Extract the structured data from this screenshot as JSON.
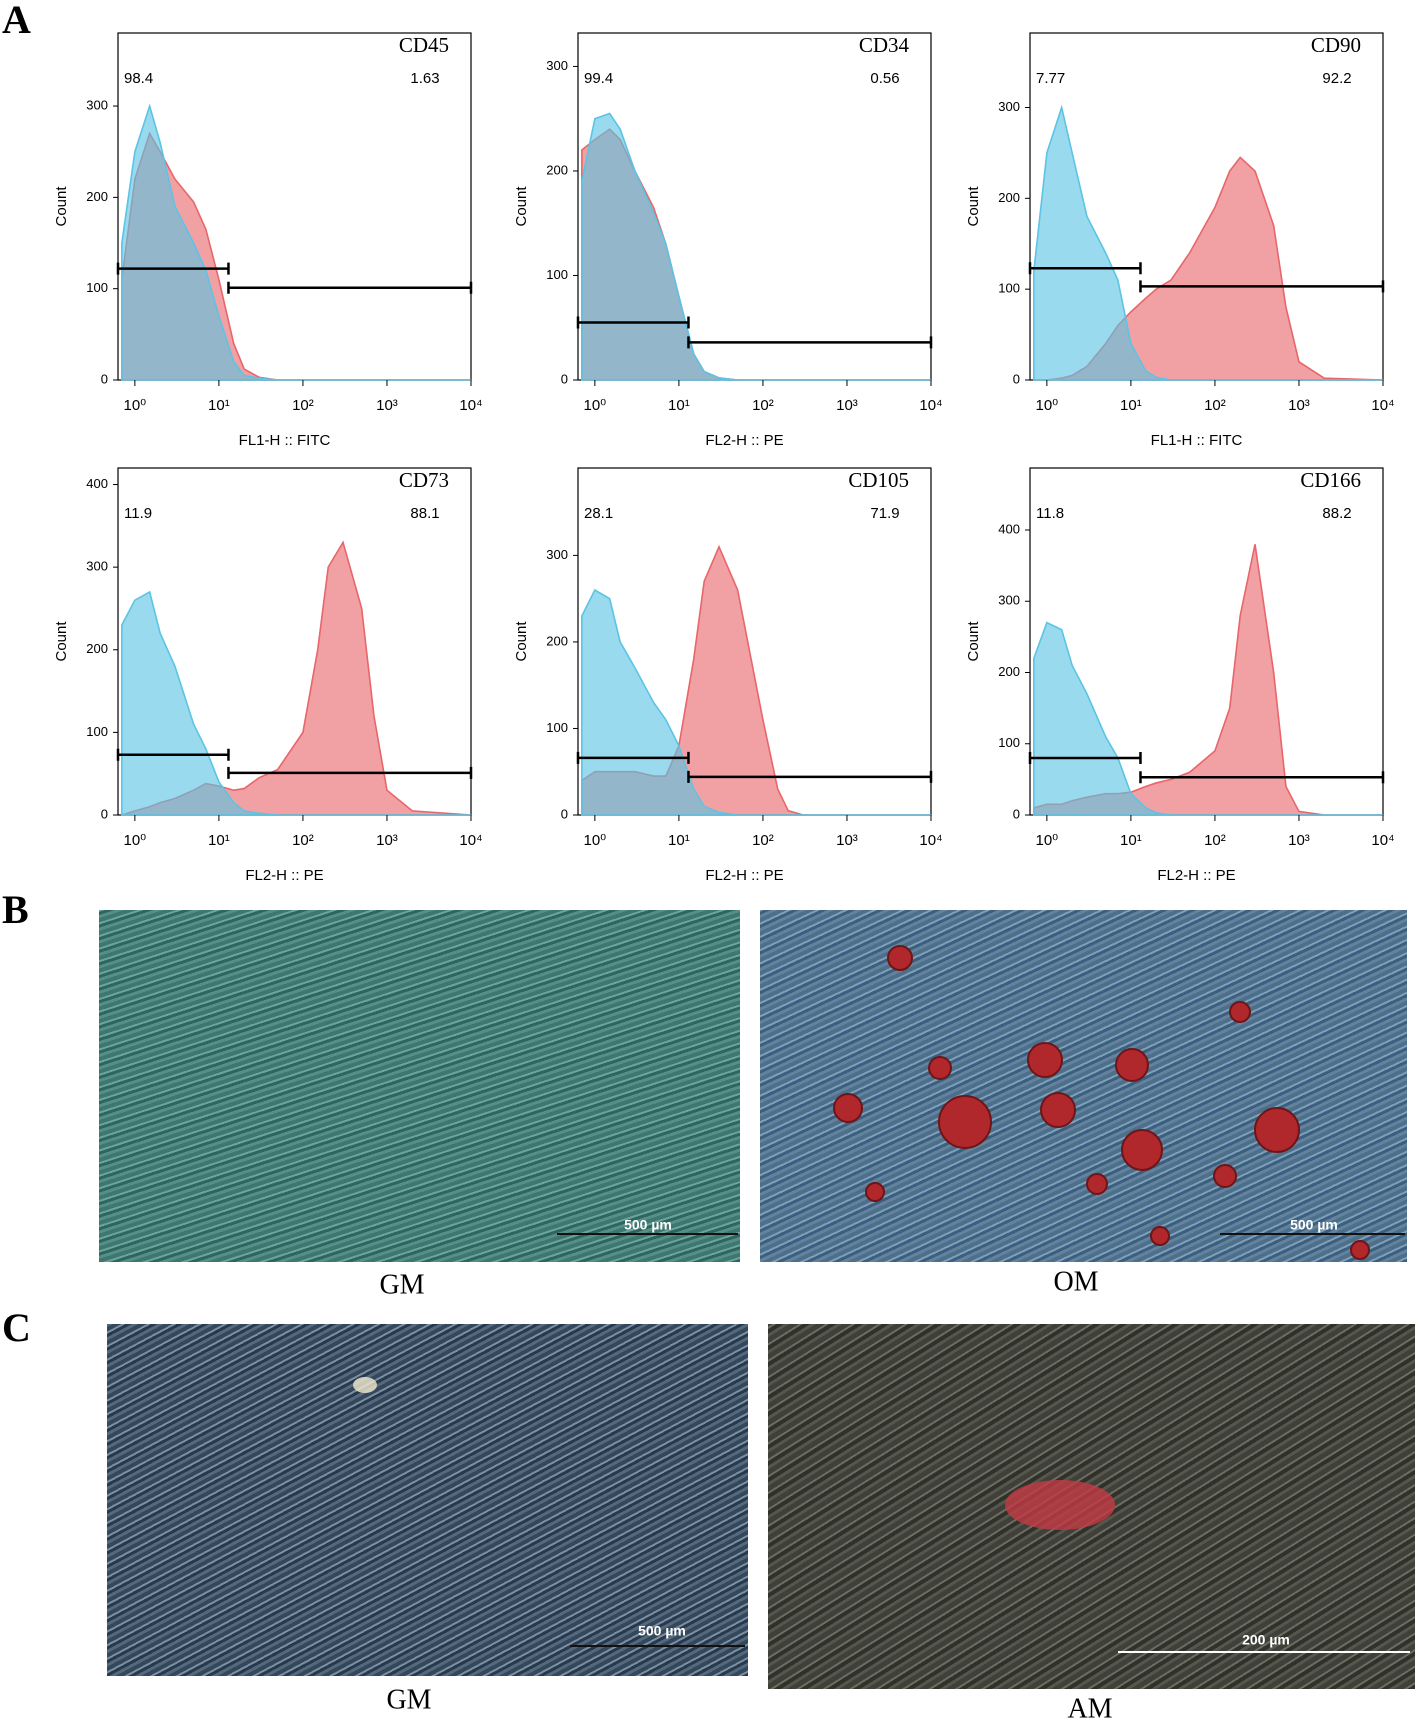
{
  "figure": {
    "panel_labels": [
      "A",
      "B",
      "C"
    ],
    "images": [
      {
        "caption": "GM",
        "scale_bar": "500 µm"
      },
      {
        "caption": "OM",
        "scale_bar": "500 µm"
      },
      {
        "caption": "GM",
        "scale_bar": "500 µm"
      },
      {
        "caption": "AM",
        "scale_bar": "200 µm"
      }
    ]
  },
  "chart_data": [
    {
      "type": "area",
      "marker": "CD45",
      "x_label": "FL1-H :: FITC",
      "y_label": "Count",
      "xscale": "log",
      "xlim": [
        0.63,
        10000
      ],
      "ylim": [
        0,
        380
      ],
      "xticks": [
        {
          "value": 1,
          "label": "10⁰"
        },
        {
          "value": 10,
          "label": "10¹"
        },
        {
          "value": 100,
          "label": "10²"
        },
        {
          "value": 1000,
          "label": "10³"
        },
        {
          "value": 10000,
          "label": "10⁴"
        }
      ],
      "yticks": [
        0,
        100,
        200,
        300
      ],
      "x": [
        0.7,
        1,
        1.5,
        2,
        3,
        5,
        7,
        10,
        15,
        20,
        30,
        50,
        100,
        150,
        200,
        300,
        500,
        700,
        1000,
        2000,
        10000
      ],
      "series": [
        {
          "color": "#e8666a",
          "values": [
            110,
            220,
            270,
            250,
            220,
            195,
            165,
            110,
            40,
            12,
            3,
            0,
            0,
            0,
            0,
            0,
            0,
            0,
            0,
            0,
            0
          ]
        },
        {
          "color": "#5bc4e4",
          "values": [
            150,
            250,
            300,
            260,
            190,
            150,
            120,
            70,
            20,
            5,
            2,
            0,
            0,
            0,
            0,
            0,
            0,
            0,
            0,
            0,
            0
          ]
        }
      ],
      "gates": [
        {
          "from": 0.63,
          "to": 13,
          "y": 122,
          "label": "98.4"
        },
        {
          "from": 13,
          "to": 10000,
          "y": 101,
          "label": "1.63"
        }
      ]
    },
    {
      "type": "area",
      "marker": "CD34",
      "x_label": "FL2-H :: PE",
      "y_label": "Count",
      "xscale": "log",
      "xlim": [
        0.63,
        10000
      ],
      "ylim": [
        0,
        332
      ],
      "xticks": [
        {
          "value": 1,
          "label": "10⁰"
        },
        {
          "value": 10,
          "label": "10¹"
        },
        {
          "value": 100,
          "label": "10²"
        },
        {
          "value": 1000,
          "label": "10³"
        },
        {
          "value": 10000,
          "label": "10⁴"
        }
      ],
      "yticks": [
        0,
        100,
        200,
        300
      ],
      "x": [
        0.7,
        1,
        1.5,
        2,
        3,
        5,
        7,
        10,
        15,
        20,
        30,
        50,
        100,
        150,
        200,
        300,
        500,
        700,
        1000,
        2000,
        10000
      ],
      "series": [
        {
          "color": "#e8666a",
          "values": [
            220,
            230,
            240,
            230,
            200,
            165,
            130,
            80,
            25,
            8,
            2,
            0,
            0,
            0,
            0,
            0,
            0,
            0,
            0,
            0,
            0
          ]
        },
        {
          "color": "#5bc4e4",
          "values": [
            190,
            250,
            255,
            240,
            200,
            160,
            130,
            80,
            25,
            8,
            2,
            0,
            0,
            0,
            0,
            0,
            0,
            0,
            0,
            0,
            0
          ]
        }
      ],
      "gates": [
        {
          "from": 0.63,
          "to": 13,
          "y": 55,
          "label": "99.4"
        },
        {
          "from": 13,
          "to": 10000,
          "y": 36,
          "label": "0.56"
        }
      ]
    },
    {
      "type": "area",
      "marker": "CD90",
      "x_label": "FL1-H :: FITC",
      "y_label": "Count",
      "xscale": "log",
      "xlim": [
        0.63,
        10000
      ],
      "ylim": [
        0,
        382
      ],
      "xticks": [
        {
          "value": 1,
          "label": "10⁰"
        },
        {
          "value": 10,
          "label": "10¹"
        },
        {
          "value": 100,
          "label": "10²"
        },
        {
          "value": 1000,
          "label": "10³"
        },
        {
          "value": 10000,
          "label": "10⁴"
        }
      ],
      "yticks": [
        0,
        100,
        200,
        300
      ],
      "x": [
        0.7,
        1,
        1.5,
        2,
        3,
        5,
        7,
        10,
        15,
        20,
        30,
        50,
        100,
        150,
        200,
        300,
        500,
        700,
        1000,
        2000,
        10000
      ],
      "series": [
        {
          "color": "#e8666a",
          "values": [
            0,
            0,
            2,
            5,
            15,
            40,
            60,
            75,
            90,
            100,
            110,
            140,
            190,
            230,
            245,
            230,
            170,
            80,
            20,
            2,
            0
          ]
        },
        {
          "color": "#5bc4e4",
          "values": [
            120,
            250,
            300,
            250,
            180,
            140,
            110,
            40,
            10,
            3,
            0,
            0,
            0,
            0,
            0,
            0,
            0,
            0,
            0,
            0,
            0
          ]
        }
      ],
      "gates": [
        {
          "from": 0.63,
          "to": 13,
          "y": 123,
          "label": "7.77"
        },
        {
          "from": 13,
          "to": 10000,
          "y": 103,
          "label": "92.2"
        }
      ]
    },
    {
      "type": "area",
      "marker": "CD73",
      "x_label": "FL2-H :: PE",
      "y_label": "Count",
      "xscale": "log",
      "xlim": [
        0.63,
        10000
      ],
      "ylim": [
        0,
        420
      ],
      "xticks": [
        {
          "value": 1,
          "label": "10⁰"
        },
        {
          "value": 10,
          "label": "10¹"
        },
        {
          "value": 100,
          "label": "10²"
        },
        {
          "value": 1000,
          "label": "10³"
        },
        {
          "value": 10000,
          "label": "10⁴"
        }
      ],
      "yticks": [
        0,
        100,
        200,
        300,
        400
      ],
      "x": [
        0.7,
        1,
        1.5,
        2,
        3,
        5,
        7,
        10,
        15,
        20,
        30,
        50,
        100,
        150,
        200,
        300,
        500,
        700,
        1000,
        2000,
        10000
      ],
      "series": [
        {
          "color": "#e8666a",
          "values": [
            0,
            5,
            10,
            15,
            20,
            30,
            38,
            35,
            30,
            32,
            45,
            55,
            100,
            200,
            300,
            330,
            250,
            120,
            30,
            5,
            0
          ]
        },
        {
          "color": "#5bc4e4",
          "values": [
            230,
            260,
            270,
            220,
            180,
            110,
            80,
            40,
            15,
            5,
            2,
            0,
            0,
            0,
            0,
            0,
            0,
            0,
            0,
            0,
            0
          ]
        }
      ],
      "gates": [
        {
          "from": 0.63,
          "to": 13,
          "y": 73,
          "label": "11.9"
        },
        {
          "from": 13,
          "to": 10000,
          "y": 51,
          "label": "88.1"
        }
      ]
    },
    {
      "type": "area",
      "marker": "CD105",
      "x_label": "FL2-H :: PE",
      "y_label": "Count",
      "xscale": "log",
      "xlim": [
        0.63,
        10000
      ],
      "ylim": [
        0,
        401
      ],
      "xticks": [
        {
          "value": 1,
          "label": "10⁰"
        },
        {
          "value": 10,
          "label": "10¹"
        },
        {
          "value": 100,
          "label": "10²"
        },
        {
          "value": 1000,
          "label": "10³"
        },
        {
          "value": 10000,
          "label": "10⁴"
        }
      ],
      "yticks": [
        0,
        100,
        200,
        300
      ],
      "x": [
        0.7,
        1,
        1.5,
        2,
        3,
        5,
        7,
        10,
        15,
        20,
        30,
        50,
        100,
        150,
        200,
        300,
        500,
        700,
        1000,
        2000,
        10000
      ],
      "series": [
        {
          "color": "#e8666a",
          "values": [
            40,
            50,
            50,
            50,
            50,
            45,
            45,
            80,
            180,
            270,
            310,
            260,
            110,
            30,
            5,
            0,
            0,
            0,
            0,
            0,
            0
          ]
        },
        {
          "color": "#5bc4e4",
          "values": [
            230,
            260,
            250,
            200,
            170,
            130,
            110,
            80,
            30,
            10,
            3,
            0,
            0,
            0,
            0,
            0,
            0,
            0,
            0,
            0,
            0
          ]
        }
      ],
      "gates": [
        {
          "from": 0.63,
          "to": 13,
          "y": 66,
          "label": "28.1"
        },
        {
          "from": 13,
          "to": 10000,
          "y": 44,
          "label": "71.9"
        }
      ]
    },
    {
      "type": "area",
      "marker": "CD166",
      "x_label": "FL2-H :: PE",
      "y_label": "Count",
      "xscale": "log",
      "xlim": [
        0.63,
        10000
      ],
      "ylim": [
        0,
        487
      ],
      "xticks": [
        {
          "value": 1,
          "label": "10⁰"
        },
        {
          "value": 10,
          "label": "10¹"
        },
        {
          "value": 100,
          "label": "10²"
        },
        {
          "value": 1000,
          "label": "10³"
        },
        {
          "value": 10000,
          "label": "10⁴"
        }
      ],
      "yticks": [
        0,
        100,
        200,
        300,
        400
      ],
      "x": [
        0.7,
        1,
        1.5,
        2,
        3,
        5,
        7,
        10,
        15,
        20,
        30,
        50,
        100,
        150,
        200,
        300,
        500,
        700,
        1000,
        2000,
        10000
      ],
      "series": [
        {
          "color": "#e8666a",
          "values": [
            10,
            15,
            15,
            20,
            25,
            30,
            30,
            32,
            40,
            45,
            50,
            60,
            90,
            150,
            280,
            380,
            200,
            40,
            5,
            0,
            0
          ]
        },
        {
          "color": "#5bc4e4",
          "values": [
            220,
            270,
            260,
            210,
            170,
            110,
            80,
            30,
            10,
            3,
            0,
            0,
            0,
            0,
            0,
            0,
            0,
            0,
            0,
            0,
            0
          ]
        }
      ],
      "gates": [
        {
          "from": 0.63,
          "to": 13,
          "y": 80,
          "label": "11.8"
        },
        {
          "from": 13,
          "to": 10000,
          "y": 53,
          "label": "88.2"
        }
      ]
    }
  ]
}
